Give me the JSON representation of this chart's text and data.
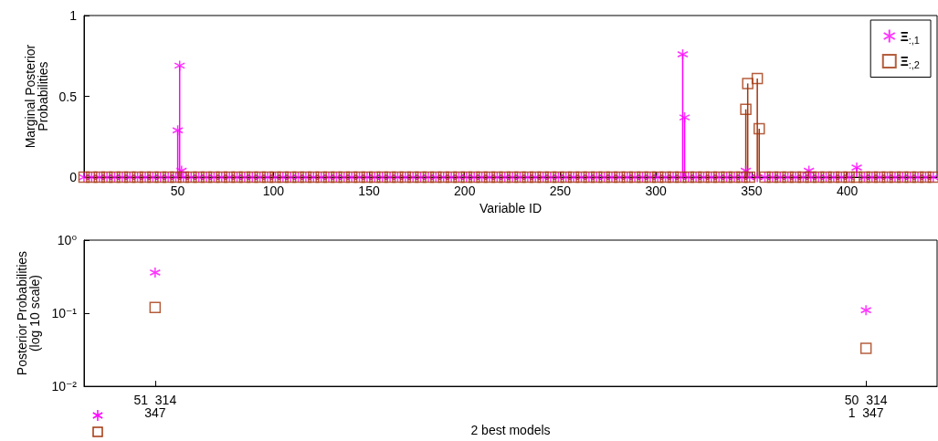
{
  "chart_data": [
    {
      "type": "lollipop",
      "ylabel": "Marginal Posterior\nProbabilities",
      "xlabel": "Variable ID",
      "xlim": [
        1,
        447
      ],
      "xticks": [
        50,
        100,
        150,
        200,
        250,
        300,
        350,
        400
      ],
      "ylim": [
        0,
        1
      ],
      "yticks": [
        0,
        0.5,
        1
      ],
      "legend": "top right",
      "series": [
        {
          "name": "Ξ$_{:,1}$",
          "color": "#ff00ff",
          "marker": "cross",
          "x": [
            1,
            5,
            9,
            13,
            17,
            21,
            25,
            29,
            33,
            37,
            41,
            45,
            49,
            50,
            51,
            52,
            53,
            57,
            61,
            65,
            69,
            73,
            77,
            81,
            85,
            89,
            93,
            97,
            101,
            105,
            109,
            113,
            117,
            121,
            125,
            129,
            133,
            137,
            141,
            145,
            149,
            153,
            157,
            161,
            165,
            169,
            173,
            177,
            181,
            185,
            189,
            193,
            197,
            201,
            205,
            209,
            213,
            217,
            221,
            225,
            229,
            233,
            237,
            241,
            245,
            249,
            253,
            257,
            261,
            265,
            269,
            273,
            277,
            281,
            285,
            289,
            293,
            297,
            301,
            305,
            309,
            313,
            314,
            315,
            317,
            321,
            325,
            329,
            333,
            337,
            341,
            345,
            347,
            349,
            353,
            357,
            361,
            365,
            369,
            373,
            377,
            380,
            381,
            385,
            389,
            393,
            397,
            401,
            405,
            409,
            413,
            417,
            421,
            425,
            429,
            433,
            437,
            441,
            445
          ],
          "values": [
            0,
            0,
            0,
            0,
            0,
            0,
            0,
            0,
            0,
            0,
            0,
            0,
            0,
            0.29,
            0.69,
            0.04,
            0,
            0,
            0,
            0,
            0,
            0,
            0,
            0,
            0,
            0,
            0,
            0,
            0,
            0,
            0,
            0,
            0,
            0,
            0,
            0,
            0,
            0,
            0,
            0,
            0,
            0,
            0,
            0,
            0,
            0,
            0,
            0,
            0,
            0,
            0,
            0,
            0,
            0,
            0,
            0,
            0,
            0,
            0,
            0,
            0,
            0,
            0,
            0,
            0,
            0,
            0,
            0,
            0,
            0,
            0,
            0,
            0,
            0,
            0,
            0,
            0,
            0,
            0,
            0,
            0,
            0,
            0.76,
            0.37,
            0,
            0,
            0,
            0,
            0,
            0,
            0,
            0,
            0.04,
            0,
            0,
            0,
            0,
            0,
            0,
            0,
            0,
            0.04,
            0,
            0,
            0,
            0,
            0,
            0,
            0.06,
            0,
            0,
            0,
            0,
            0,
            0,
            0,
            0,
            0,
            0
          ]
        },
        {
          "name": "Ξ$_{:,2}$",
          "color": "#a3360c",
          "marker": "square",
          "x": [
            1,
            5,
            9,
            13,
            17,
            21,
            25,
            29,
            33,
            37,
            41,
            45,
            49,
            53,
            57,
            61,
            65,
            69,
            73,
            77,
            81,
            85,
            89,
            93,
            97,
            101,
            105,
            109,
            113,
            117,
            121,
            125,
            129,
            133,
            137,
            141,
            145,
            149,
            153,
            157,
            161,
            165,
            169,
            173,
            177,
            181,
            185,
            189,
            193,
            197,
            201,
            205,
            209,
            213,
            217,
            221,
            225,
            229,
            233,
            237,
            241,
            245,
            249,
            253,
            257,
            261,
            265,
            269,
            273,
            277,
            281,
            285,
            289,
            293,
            297,
            301,
            305,
            309,
            313,
            317,
            321,
            325,
            329,
            333,
            337,
            341,
            345,
            347,
            348,
            349,
            353,
            354,
            357,
            361,
            365,
            369,
            373,
            377,
            381,
            385,
            389,
            393,
            397,
            401,
            405,
            409,
            413,
            417,
            421,
            425,
            429,
            433,
            437,
            441,
            445
          ],
          "values": [
            0,
            0,
            0,
            0,
            0,
            0,
            0,
            0,
            0,
            0,
            0,
            0,
            0,
            0,
            0,
            0,
            0,
            0,
            0,
            0,
            0,
            0,
            0,
            0,
            0,
            0,
            0,
            0,
            0,
            0,
            0,
            0,
            0,
            0,
            0,
            0,
            0,
            0,
            0,
            0,
            0,
            0,
            0,
            0,
            0,
            0,
            0,
            0,
            0,
            0,
            0,
            0,
            0,
            0,
            0,
            0,
            0,
            0,
            0,
            0,
            0,
            0,
            0,
            0,
            0,
            0,
            0,
            0,
            0,
            0,
            0,
            0,
            0,
            0,
            0,
            0,
            0,
            0,
            0,
            0,
            0,
            0,
            0,
            0,
            0,
            0,
            0,
            0.42,
            0.58,
            0,
            0.61,
            0.3,
            0,
            0,
            0,
            0,
            0,
            0,
            0,
            0,
            0,
            0,
            0,
            0,
            0,
            0,
            0,
            0,
            0,
            0,
            0,
            0,
            0,
            0,
            0
          ]
        }
      ]
    },
    {
      "type": "scatter",
      "ylabel": "Posterior Probabilities\n(log 10 scale)",
      "xlabel": "2 best models",
      "log": "y",
      "categories": [
        "51  314\n347",
        "50  314\n1  347"
      ],
      "ylim": [
        0.01,
        1
      ],
      "yticks": [
        {
          "value": 0.01,
          "label": "10⁻²"
        },
        {
          "value": 0.1,
          "label": "10⁻¹"
        },
        {
          "value": 1,
          "label": "10⁰"
        }
      ],
      "series": [
        {
          "color": "#ff00ff",
          "marker": "cross",
          "values": [
            0.36,
            0.11
          ]
        },
        {
          "color": "#a3360c",
          "marker": "square",
          "values": [
            0.12,
            0.033
          ]
        }
      ]
    }
  ]
}
